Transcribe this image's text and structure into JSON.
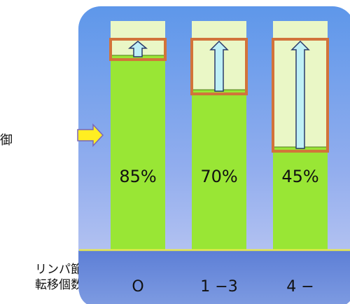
{
  "chart_data": {
    "type": "bar",
    "categories": [
      "0",
      "1-3",
      "4-"
    ],
    "category_labels": [
      "O",
      "1 −3",
      "4 −"
    ],
    "values": [
      85,
      70,
      45
    ],
    "data_labels": [
      "85%",
      "70%",
      "45%"
    ],
    "ylim": [
      0,
      100
    ],
    "xlabel_lines": [
      "リンパ節",
      "転移個数"
    ],
    "title": "",
    "ylabel": ""
  },
  "left_cut_text": "御",
  "colors": {
    "bar_fill": "#99e635",
    "bar_bg": "#eaf7c6",
    "highlight_box": "#d2733a",
    "arrow_fill": "#bff0f6",
    "pointer_arrow": "#ffee22",
    "panel_top": "#5e97ea",
    "panel_bottom": "#c4cdf2",
    "baseline": "#e8e850"
  }
}
